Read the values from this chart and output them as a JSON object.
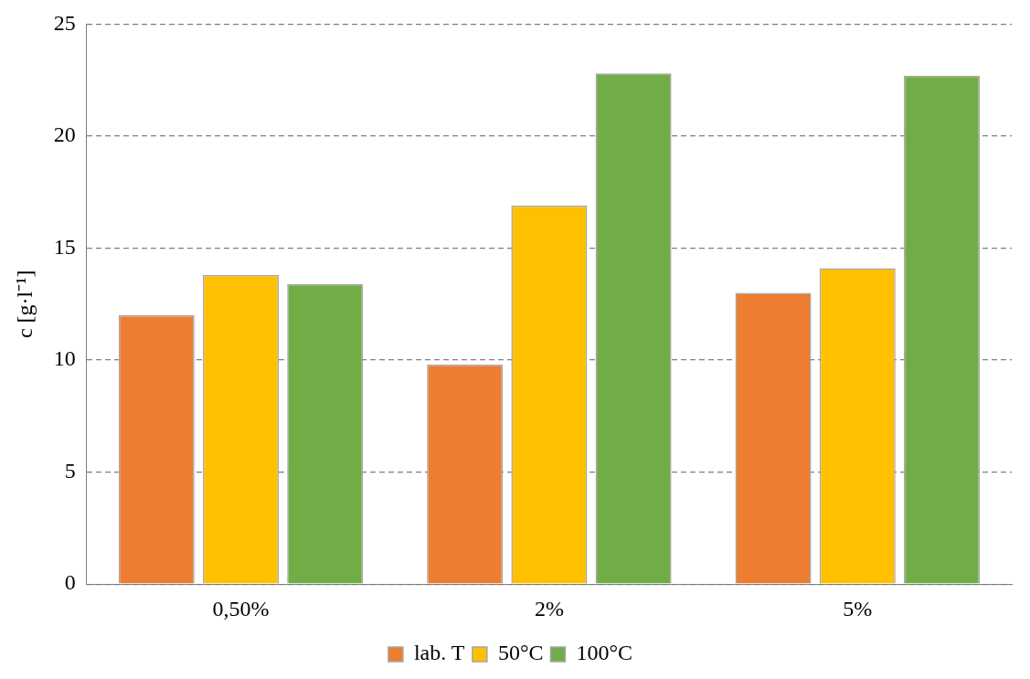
{
  "chart_data": {
    "type": "bar",
    "ylabel": "c [g·l⁻¹]",
    "categories": [
      "0,50%",
      "2%",
      "5%"
    ],
    "series": [
      {
        "name": "lab. T",
        "color": "#ed7d31",
        "values": [
          12.0,
          9.8,
          13.0
        ]
      },
      {
        "name": "50°C",
        "color": "#ffc000",
        "values": [
          13.8,
          16.9,
          14.1
        ]
      },
      {
        "name": "100°C",
        "color": "#70ad47",
        "values": [
          13.4,
          22.8,
          22.7
        ]
      }
    ],
    "ylim": [
      0,
      25
    ],
    "yticks": [
      0,
      5,
      10,
      15,
      20,
      25
    ],
    "grid": "y",
    "legend": "bottom"
  }
}
